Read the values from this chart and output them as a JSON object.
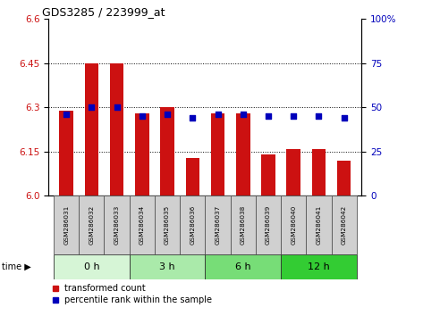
{
  "title": "GDS3285 / 223999_at",
  "samples": [
    "GSM286031",
    "GSM286032",
    "GSM286033",
    "GSM286034",
    "GSM286035",
    "GSM286036",
    "GSM286037",
    "GSM286038",
    "GSM286039",
    "GSM286040",
    "GSM286041",
    "GSM286042"
  ],
  "transformed_count": [
    6.29,
    6.45,
    6.45,
    6.28,
    6.3,
    6.13,
    6.28,
    6.28,
    6.14,
    6.16,
    6.16,
    6.12
  ],
  "percentile_rank": [
    46,
    50,
    50,
    45,
    46,
    44,
    46,
    46,
    45,
    45,
    45,
    44
  ],
  "time_groups": [
    {
      "label": "0 h",
      "start": 0,
      "end": 3,
      "color": "#d6f5d6"
    },
    {
      "label": "3 h",
      "start": 3,
      "end": 6,
      "color": "#aaeaaa"
    },
    {
      "label": "6 h",
      "start": 6,
      "end": 9,
      "color": "#77dd77"
    },
    {
      "label": "12 h",
      "start": 9,
      "end": 12,
      "color": "#33cc33"
    }
  ],
  "ylim_left": [
    6.0,
    6.6
  ],
  "ylim_right": [
    0,
    100
  ],
  "yticks_left": [
    6.0,
    6.15,
    6.3,
    6.45,
    6.6
  ],
  "yticks_right": [
    0,
    25,
    50,
    75,
    100
  ],
  "bar_color": "#cc1111",
  "dot_color": "#0000bb",
  "bar_width": 0.55,
  "background_color": "#ffffff",
  "sample_box_color": "#d0d0d0",
  "grid_yticks": [
    6.15,
    6.3,
    6.45
  ]
}
